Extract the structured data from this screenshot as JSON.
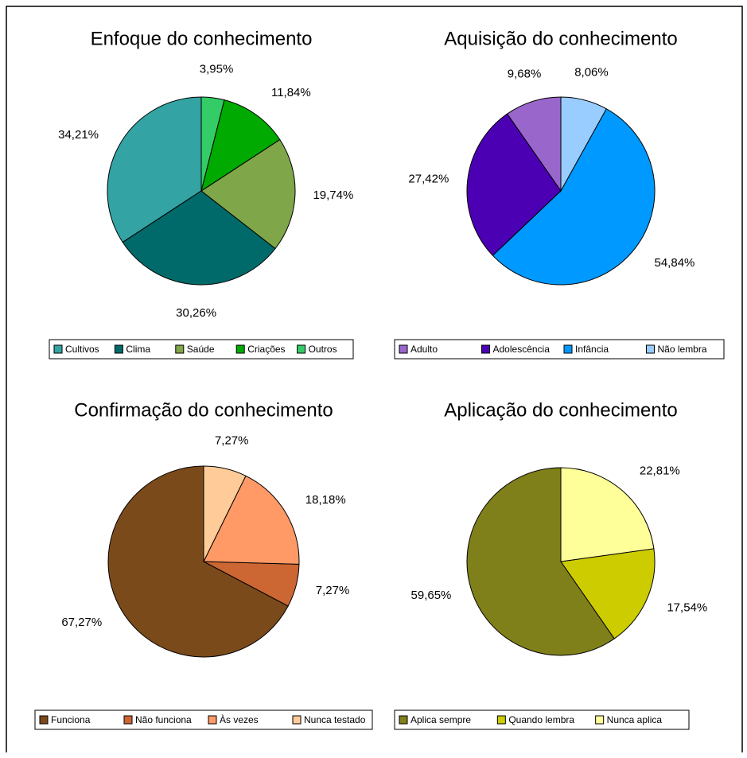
{
  "chart_data": [
    {
      "type": "pie",
      "title": "Enfoque do conhecimento",
      "categories": [
        "Cultivos",
        "Clima",
        "Saúde",
        "Criações",
        "Outros"
      ],
      "values": [
        34.21,
        30.26,
        19.74,
        11.84,
        3.95
      ],
      "value_labels": [
        "34,21%",
        "30,26%",
        "19,74%",
        "11,84%",
        "3,95%"
      ],
      "colors": [
        "#33a3a3",
        "#006a6a",
        "#7fa648",
        "#00aa00",
        "#33cc66"
      ]
    },
    {
      "type": "pie",
      "title": "Aquisição do conhecimento",
      "categories": [
        "Adulto",
        "Adolescência",
        "Infância",
        "Não lembra"
      ],
      "values": [
        9.68,
        27.42,
        54.84,
        8.06
      ],
      "value_labels": [
        "9,68%",
        "27,42%",
        "54,84%",
        "8,06%"
      ],
      "colors": [
        "#9966cc",
        "#4b00b4",
        "#0099ff",
        "#99ccff"
      ]
    },
    {
      "type": "pie",
      "title": "Confirmação do conhecimento",
      "categories": [
        "Funciona",
        "Não funciona",
        "Às vezes",
        "Nunca testado"
      ],
      "values": [
        67.27,
        7.27,
        18.18,
        7.27
      ],
      "value_labels": [
        "67,27%",
        "7,27%",
        "18,18%",
        "7,27%"
      ],
      "colors": [
        "#7b4a1a",
        "#cc6633",
        "#ff9966",
        "#ffcc99"
      ]
    },
    {
      "type": "pie",
      "title": "Aplicação do conhecimento",
      "categories": [
        "Aplica sempre",
        "Quando lembra",
        "Nunca aplica"
      ],
      "values": [
        59.65,
        17.54,
        22.81
      ],
      "value_labels": [
        "59,65%",
        "17,54%",
        "22,81%"
      ],
      "colors": [
        "#80801a",
        "#cccc00",
        "#ffff99"
      ]
    }
  ]
}
